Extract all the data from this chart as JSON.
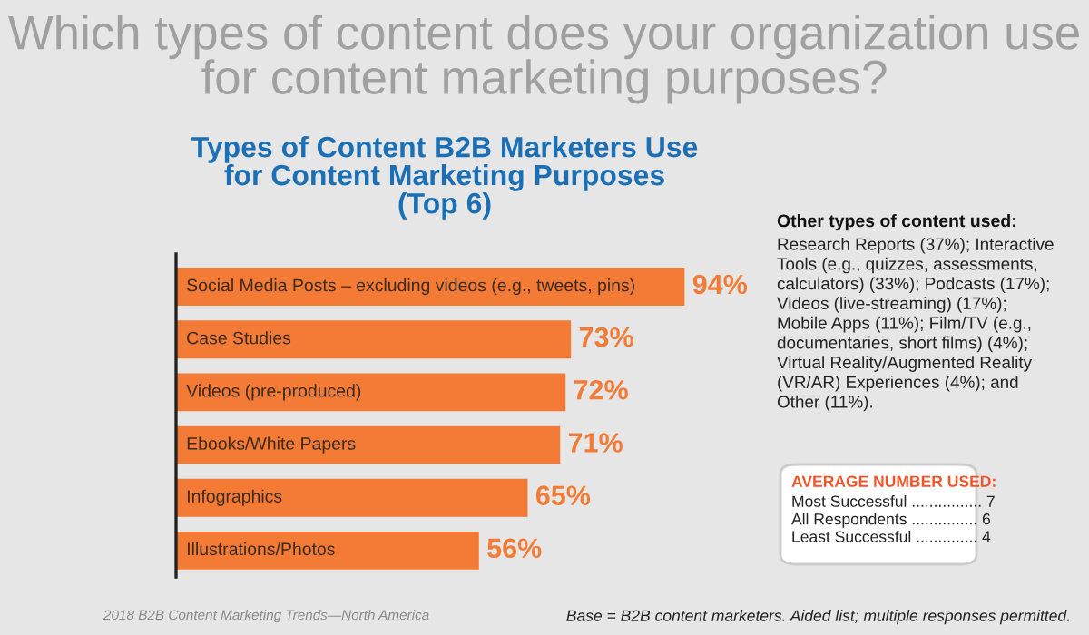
{
  "chart_data": {
    "type": "bar",
    "orientation": "horizontal",
    "title": "Which types of content does your organization use\nfor content marketing purposes?",
    "subtitle": "Types of Content B2B Marketers Use\nfor Content Marketing Purposes\n(Top 6)",
    "categories": [
      "Social Media Posts – excluding videos (e.g., tweets, pins)",
      "Case Studies",
      "Videos (pre-produced)",
      "Ebooks/White Papers",
      "Infographics",
      "Illustrations/Photos"
    ],
    "values": [
      94,
      73,
      72,
      71,
      65,
      56
    ],
    "value_labels": [
      "94%",
      "73%",
      "72%",
      "71%",
      "65%",
      "56%"
    ],
    "color": "#f47b35",
    "annotations": [
      "Other types of content used:",
      "Research Reports (37%); Interactive\nTools (e.g., quizzes, assessments,\ncalculators) (33%); Podcasts (17%);\nVideos (live-streaming) (17%);\nMobile Apps (11%); Film/TV (e.g.,\ndocumentaries, short films) (4%);\nVirtual Reality/Augmented Reality\n(VR/AR) Experiences (4%); and\nOther (11%).",
      "AVERAGE NUMBER USED:",
      "Most Successful ................ 7\nAll Respondents ............... 6\nLeast Successful .............. 4",
      "Base = B2B content marketers. Aided list; multiple responses permitted.",
      "2018 B2B Content Marketing Trends—North America"
    ]
  }
}
